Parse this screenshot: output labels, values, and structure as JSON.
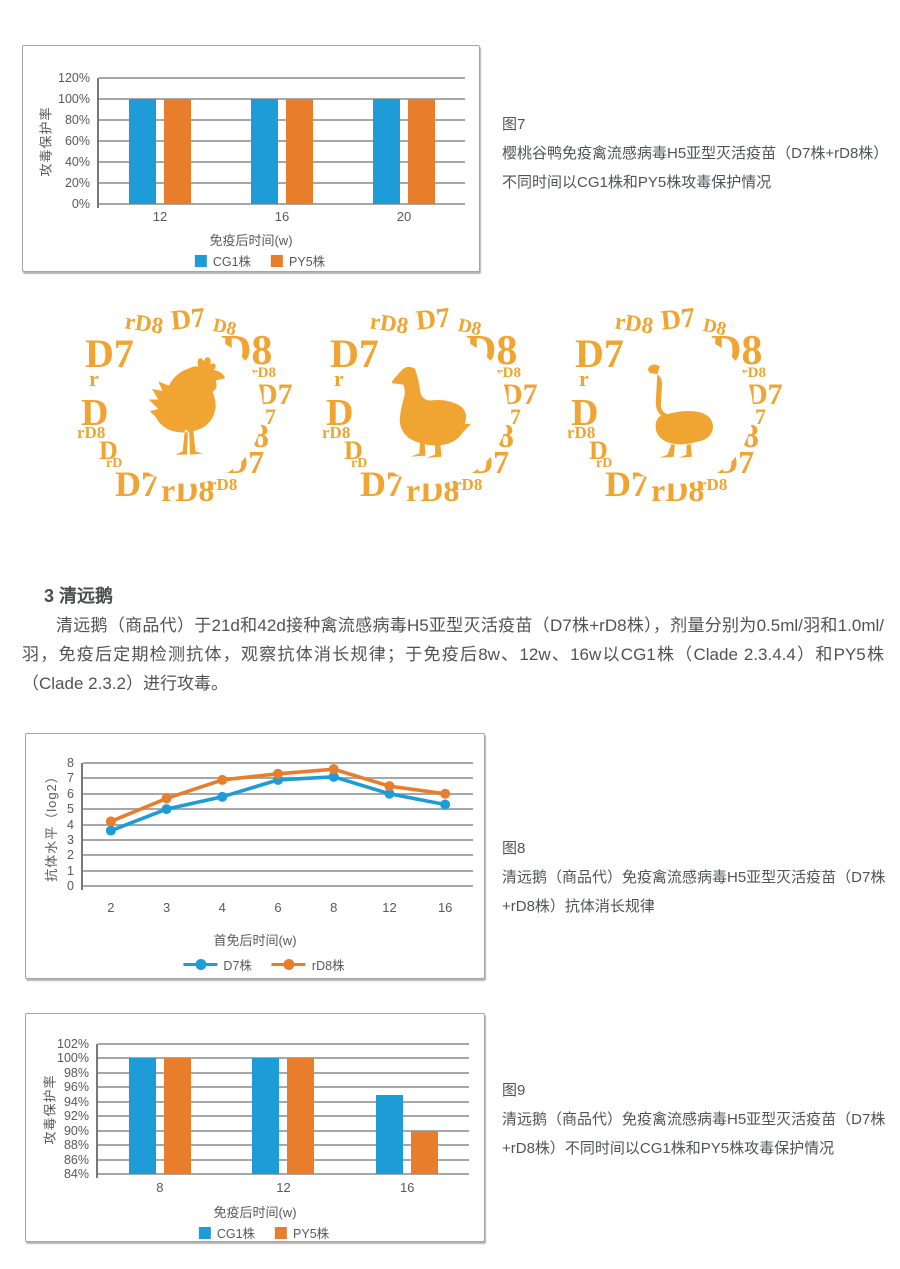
{
  "colors": {
    "blue": "#1E9CD7",
    "orange": "#E87E2B",
    "gold": "#F0A431",
    "grid": "#A6A7A9",
    "text": "#55565A"
  },
  "figures": {
    "fig7": {
      "label": "图7",
      "caption": "樱桃谷鸭免疫禽流感病毒H5亚型灭活疫苗（D7株+rD8株）不同时间以CG1株和PY5株攻毒保护情况"
    },
    "fig8": {
      "label": "图8",
      "caption": "清远鹅（商品代）免疫禽流感病毒H5亚型灭活疫苗（D7株+rD8株）抗体消长规律"
    },
    "fig9": {
      "label": "图9",
      "caption": "清远鹅（商品代）免疫禽流感病毒H5亚型灭活疫苗（D7株+rD8株）不同时间以CG1株和PY5株攻毒保护情况"
    }
  },
  "section": {
    "heading": "3 清远鹅",
    "paragraph": "清远鹅（商品代）于21d和42d接种禽流感病毒H5亚型灭活疫苗（D7株+rD8株），剂量分别为0.5ml/羽和1.0ml/羽，免疫后定期检测抗体，观察抗体消长规律；于免疫后8w、12w、16w以CG1株（Clade 2.3.4.4）和PY5株（Clade 2.3.2）进行攻毒。"
  },
  "logos": {
    "ring_labels": [
      "rD8",
      "D7",
      "D8",
      "D8",
      "rD8",
      "D7",
      "7",
      "8",
      "D7",
      "D7",
      "rD8",
      "rD8",
      "D",
      "rD8",
      "r",
      "D7",
      "D",
      "rD"
    ],
    "birds": [
      "chicken",
      "duck",
      "goose"
    ]
  },
  "chart_data": [
    {
      "id": "fig7",
      "type": "bar",
      "grid": true,
      "legend_position": "bottom",
      "categories": [
        "12",
        "16",
        "20"
      ],
      "series": [
        {
          "name": "CG1株",
          "color": "#1E9CD7",
          "values": [
            100,
            100,
            100
          ]
        },
        {
          "name": "PY5株",
          "color": "#E87E2B",
          "values": [
            100,
            100,
            100
          ]
        }
      ],
      "xlabel": "免疫后时间(w)",
      "ylabel": "攻毒保护率",
      "ymin": 0,
      "ymax": 120,
      "ytick_labels": [
        "120%",
        "100%",
        "80%",
        "60%",
        "40%",
        "20%",
        "0%"
      ]
    },
    {
      "id": "fig8",
      "type": "line",
      "grid": true,
      "legend_position": "bottom",
      "categories": [
        "2",
        "3",
        "4",
        "6",
        "8",
        "12",
        "16"
      ],
      "series": [
        {
          "name": "D7株",
          "color": "#1E9CD7",
          "values": [
            3.6,
            5.0,
            5.8,
            6.9,
            7.1,
            6.0,
            5.3
          ]
        },
        {
          "name": "rD8株",
          "color": "#E87E2B",
          "values": [
            4.2,
            5.7,
            6.9,
            7.3,
            7.6,
            6.5,
            6.0
          ]
        }
      ],
      "xlabel": "首免后时间(w)",
      "ylabel": "抗体水平（log2）",
      "ymin": 0,
      "ymax": 8,
      "ytick_labels": [
        "8",
        "7",
        "6",
        "5",
        "4",
        "3",
        "2",
        "1",
        "0"
      ]
    },
    {
      "id": "fig9",
      "type": "bar",
      "grid": true,
      "legend_position": "bottom",
      "categories": [
        "8",
        "12",
        "16"
      ],
      "series": [
        {
          "name": "CG1株",
          "color": "#1E9CD7",
          "values": [
            100,
            100,
            95
          ]
        },
        {
          "name": "PY5株",
          "color": "#E87E2B",
          "values": [
            100,
            100,
            90
          ]
        }
      ],
      "xlabel": "免疫后时间(w)",
      "ylabel": "攻毒保护率",
      "ymin": 84,
      "ymax": 102,
      "ytick_labels": [
        "102%",
        "100%",
        "98%",
        "96%",
        "94%",
        "92%",
        "90%",
        "88%",
        "86%",
        "84%"
      ]
    }
  ]
}
